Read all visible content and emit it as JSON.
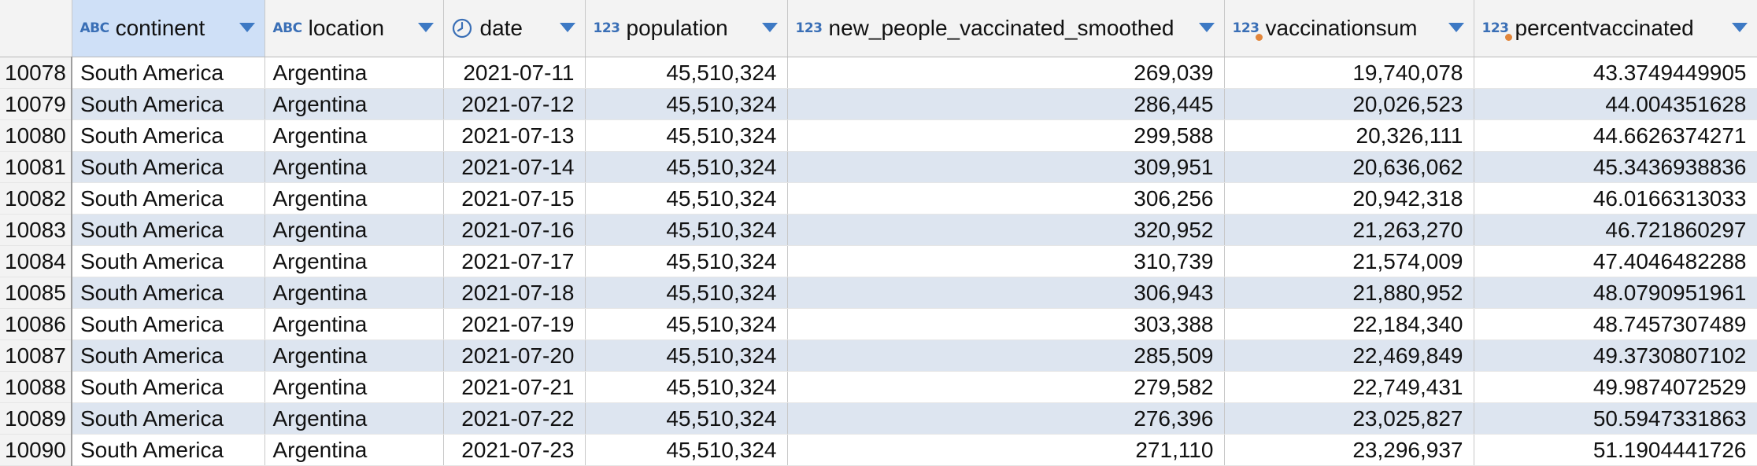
{
  "columns": [
    {
      "type": "ABC",
      "label": "continent"
    },
    {
      "type": "ABC",
      "label": "location"
    },
    {
      "type": "clock",
      "label": "date"
    },
    {
      "type": "123",
      "label": "population"
    },
    {
      "type": "123",
      "label": "new_people_vaccinated_smoothed"
    },
    {
      "type": "123",
      "label": "vaccinationsum"
    },
    {
      "type": "123",
      "label": "percentvaccinated"
    }
  ],
  "rows": [
    {
      "n": "10078",
      "c": "South America",
      "l": "Argentina",
      "d": "2021-07-11",
      "p": "45,510,324",
      "v": "269,039",
      "s": "19,740,078",
      "pv": "43.3749449905"
    },
    {
      "n": "10079",
      "c": "South America",
      "l": "Argentina",
      "d": "2021-07-12",
      "p": "45,510,324",
      "v": "286,445",
      "s": "20,026,523",
      "pv": "44.004351628"
    },
    {
      "n": "10080",
      "c": "South America",
      "l": "Argentina",
      "d": "2021-07-13",
      "p": "45,510,324",
      "v": "299,588",
      "s": "20,326,111",
      "pv": "44.6626374271"
    },
    {
      "n": "10081",
      "c": "South America",
      "l": "Argentina",
      "d": "2021-07-14",
      "p": "45,510,324",
      "v": "309,951",
      "s": "20,636,062",
      "pv": "45.3436938836"
    },
    {
      "n": "10082",
      "c": "South America",
      "l": "Argentina",
      "d": "2021-07-15",
      "p": "45,510,324",
      "v": "306,256",
      "s": "20,942,318",
      "pv": "46.0166313033"
    },
    {
      "n": "10083",
      "c": "South America",
      "l": "Argentina",
      "d": "2021-07-16",
      "p": "45,510,324",
      "v": "320,952",
      "s": "21,263,270",
      "pv": "46.721860297"
    },
    {
      "n": "10084",
      "c": "South America",
      "l": "Argentina",
      "d": "2021-07-17",
      "p": "45,510,324",
      "v": "310,739",
      "s": "21,574,009",
      "pv": "47.4046482288"
    },
    {
      "n": "10085",
      "c": "South America",
      "l": "Argentina",
      "d": "2021-07-18",
      "p": "45,510,324",
      "v": "306,943",
      "s": "21,880,952",
      "pv": "48.0790951961"
    },
    {
      "n": "10086",
      "c": "South America",
      "l": "Argentina",
      "d": "2021-07-19",
      "p": "45,510,324",
      "v": "303,388",
      "s": "22,184,340",
      "pv": "48.7457307489"
    },
    {
      "n": "10087",
      "c": "South America",
      "l": "Argentina",
      "d": "2021-07-20",
      "p": "45,510,324",
      "v": "285,509",
      "s": "22,469,849",
      "pv": "49.3730807102"
    },
    {
      "n": "10088",
      "c": "South America",
      "l": "Argentina",
      "d": "2021-07-21",
      "p": "45,510,324",
      "v": "279,582",
      "s": "22,749,431",
      "pv": "49.9874072529"
    },
    {
      "n": "10089",
      "c": "South America",
      "l": "Argentina",
      "d": "2021-07-22",
      "p": "45,510,324",
      "v": "276,396",
      "s": "23,025,827",
      "pv": "50.5947331863"
    },
    {
      "n": "10090",
      "c": "South America",
      "l": "Argentina",
      "d": "2021-07-23",
      "p": "45,510,324",
      "v": "271,110",
      "s": "23,296,937",
      "pv": "51.1904441726"
    }
  ]
}
